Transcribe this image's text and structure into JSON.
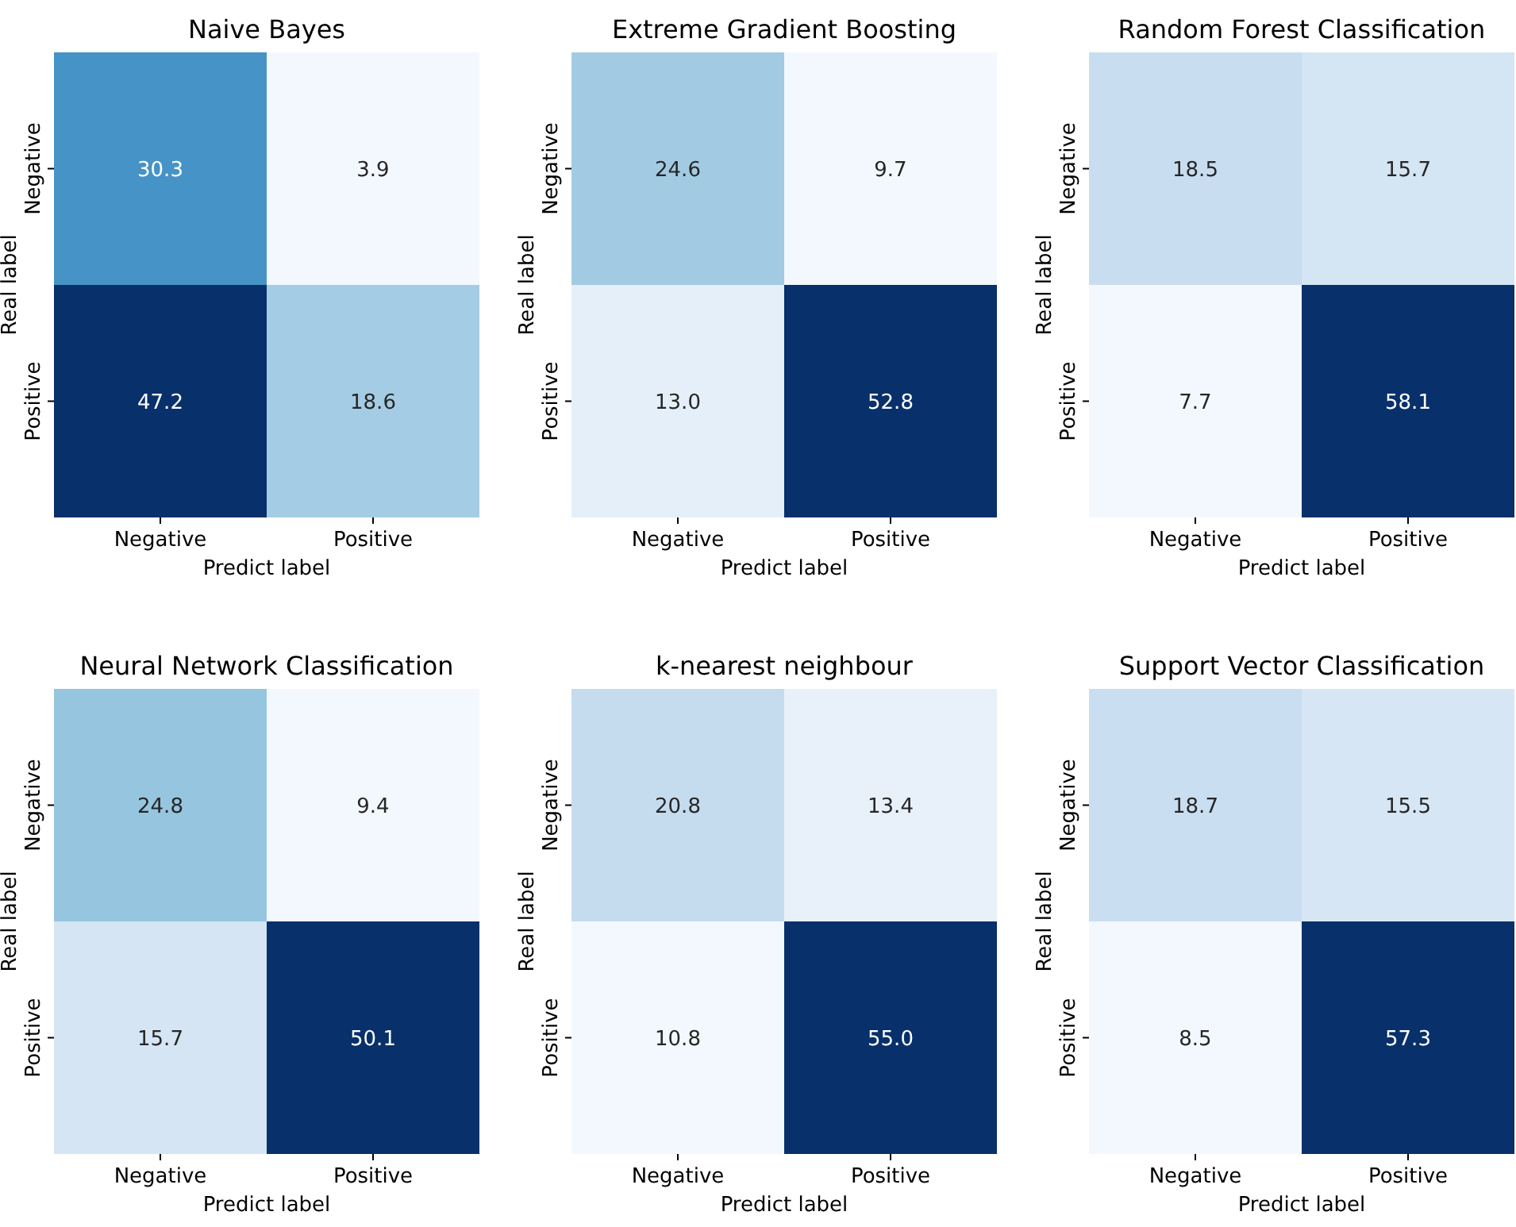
{
  "chart_data": [
    {
      "type": "heatmap",
      "title": "Naive Bayes",
      "xlabel": "Predict label",
      "ylabel": "Real label",
      "categories": [
        "Negative",
        "Positive"
      ],
      "y_categories": [
        "Negative",
        "Positive"
      ],
      "cells": [
        [
          30.3,
          3.9
        ],
        [
          47.2,
          18.6
        ]
      ],
      "cell_labels": [
        [
          "30.3",
          "3.9"
        ],
        [
          "47.2",
          "18.6"
        ]
      ]
    },
    {
      "type": "heatmap",
      "title": "Extreme Gradient Boosting",
      "xlabel": "Predict label",
      "ylabel": "Real label",
      "categories": [
        "Negative",
        "Positive"
      ],
      "y_categories": [
        "Negative",
        "Positive"
      ],
      "cells": [
        [
          24.6,
          9.7
        ],
        [
          13.0,
          52.8
        ]
      ],
      "cell_labels": [
        [
          "24.6",
          "9.7"
        ],
        [
          "13.0",
          "52.8"
        ]
      ]
    },
    {
      "type": "heatmap",
      "title": "Random Forest Classification",
      "xlabel": "Predict label",
      "ylabel": "Real label",
      "categories": [
        "Negative",
        "Positive"
      ],
      "y_categories": [
        "Negative",
        "Positive"
      ],
      "cells": [
        [
          18.5,
          15.7
        ],
        [
          7.7,
          58.1
        ]
      ],
      "cell_labels": [
        [
          "18.5",
          "15.7"
        ],
        [
          "7.7",
          "58.1"
        ]
      ]
    },
    {
      "type": "heatmap",
      "title": "Neural Network Classification",
      "xlabel": "Predict label",
      "ylabel": "Real label",
      "categories": [
        "Negative",
        "Positive"
      ],
      "y_categories": [
        "Negative",
        "Positive"
      ],
      "cells": [
        [
          24.8,
          9.4
        ],
        [
          15.7,
          50.1
        ]
      ],
      "cell_labels": [
        [
          "24.8",
          "9.4"
        ],
        [
          "15.7",
          "50.1"
        ]
      ]
    },
    {
      "type": "heatmap",
      "title": "k-nearest neighbour",
      "xlabel": "Predict label",
      "ylabel": "Real label",
      "categories": [
        "Negative",
        "Positive"
      ],
      "y_categories": [
        "Negative",
        "Positive"
      ],
      "cells": [
        [
          20.8,
          13.4
        ],
        [
          10.8,
          55.0
        ]
      ],
      "cell_labels": [
        [
          "20.8",
          "13.4"
        ],
        [
          "10.8",
          "55.0"
        ]
      ]
    },
    {
      "type": "heatmap",
      "title": "Support Vector  Classification",
      "xlabel": "Predict label",
      "ylabel": "Real label",
      "categories": [
        "Negative",
        "Positive"
      ],
      "y_categories": [
        "Negative",
        "Positive"
      ],
      "cells": [
        [
          18.7,
          15.5
        ],
        [
          8.5,
          57.3
        ]
      ],
      "cell_labels": [
        [
          "18.7",
          "15.5"
        ],
        [
          "8.5",
          "57.3"
        ]
      ]
    }
  ]
}
